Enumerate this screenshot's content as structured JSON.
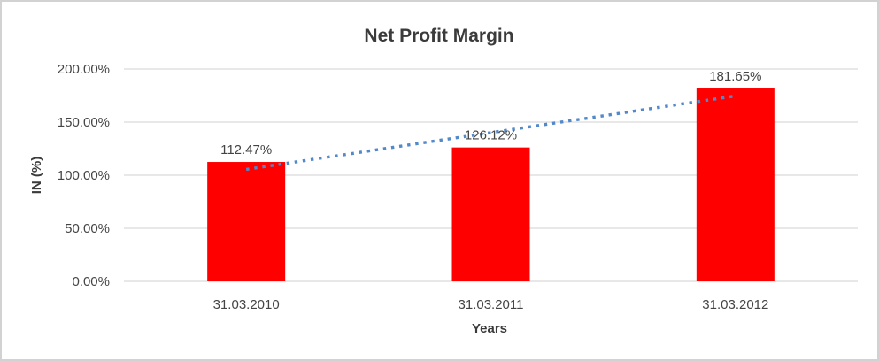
{
  "frame": {
    "border_color": "#d2d2d2",
    "background": "#ffffff"
  },
  "chart_data": {
    "type": "bar",
    "title": "Net Profit Margin",
    "xlabel": "Years",
    "ylabel": "IN (%)",
    "categories": [
      "31.03.2010",
      "31.03.2011",
      "31.03.2012"
    ],
    "series": [
      {
        "name": "Net Profit Margin",
        "values": [
          112.47,
          126.12,
          181.65
        ]
      }
    ],
    "data_labels": [
      "112.47%",
      "126.12%",
      "181.65%"
    ],
    "ylim": [
      0,
      200
    ],
    "ytick_step": 50,
    "ytick_labels": [
      "0.00%",
      "50.00%",
      "100.00%",
      "150.00%",
      "200.00%"
    ],
    "grid": true,
    "legend_position": "none",
    "bar_color": "#ff0000",
    "gridline_color": "#d9d9d9",
    "axis_line_color": "#d9d9d9",
    "trendline": {
      "type": "linear",
      "style": "dotted",
      "color": "#5189ca"
    }
  }
}
